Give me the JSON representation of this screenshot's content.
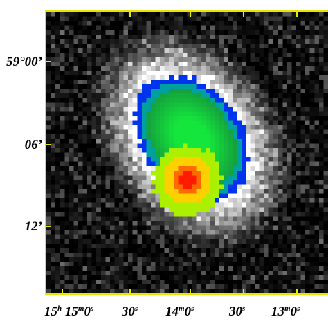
{
  "image": {
    "type": "false-color astronomical image",
    "colors": {
      "frame": "#e6e600",
      "background": "#000000",
      "colormap": [
        "#000000",
        "#ffffff",
        "#0033ff",
        "#00cc55",
        "#ffff00",
        "#ff0000"
      ]
    }
  },
  "axes": {
    "y_labels": [
      "59°00’",
      "06’",
      "12’"
    ],
    "x_labels": [
      {
        "h": "15",
        "hu": "h",
        "m": "15",
        "mu": "m",
        "s": "0",
        "su": "s"
      },
      {
        "s": "30",
        "su": "s"
      },
      {
        "m": "14",
        "mu": "m",
        "s": "0",
        "su": "s"
      },
      {
        "s": "30",
        "su": "s"
      },
      {
        "m": "13",
        "mu": "m",
        "s": "0",
        "su": "s"
      }
    ]
  }
}
